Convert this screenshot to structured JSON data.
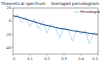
{
  "chart_data": {
    "type": "line",
    "title": "Theoretical spectrum",
    "subtitle": "Averaged periodogram",
    "x": [
      0,
      0.025,
      0.05,
      0.075,
      0.1,
      0.125,
      0.15,
      0.175,
      0.2,
      0.225,
      0.25,
      0.275,
      0.3,
      0.325,
      0.35,
      0.375,
      0.4,
      0.425,
      0.45,
      0.475,
      0.5
    ],
    "series": [
      {
        "name": "Periodogram",
        "color": "#8ec8e8",
        "values": [
          2,
          10,
          -2,
          6,
          -8,
          3,
          -12,
          0,
          -18,
          -4,
          -10,
          -26,
          -9,
          -15,
          -30,
          -13,
          -20,
          -14,
          -35,
          -17,
          -22
        ]
      },
      {
        "name": "Theoretical spectrum",
        "color": "#1f4e8c",
        "values": [
          8,
          7,
          5,
          3,
          1,
          -1,
          -3,
          -5,
          -6.5,
          -8,
          -9.5,
          -11,
          -12,
          -13,
          -14.5,
          -15.5,
          -16.5,
          -17.5,
          -18.5,
          -19.5,
          -20
        ]
      }
    ],
    "xlim": [
      0,
      0.5
    ],
    "xticks": [
      0,
      0.1,
      0.2,
      0.3,
      0.4,
      0.5
    ],
    "ylim": [
      -50,
      20
    ],
    "yticks": [
      -40,
      -20,
      0,
      20
    ],
    "grid": false,
    "legend": "upper right"
  }
}
